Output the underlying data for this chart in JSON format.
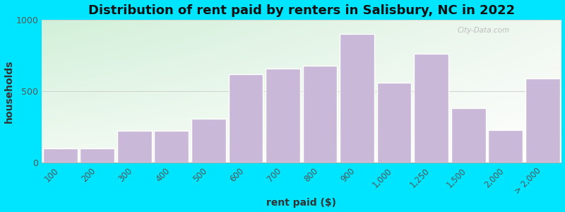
{
  "categories": [
    "100",
    "200",
    "300",
    "400",
    "500",
    "600",
    "700",
    "800",
    "900",
    "1,000",
    "1,250",
    "1,500",
    "2,000",
    "> 2,000"
  ],
  "values": [
    100,
    100,
    225,
    225,
    310,
    620,
    660,
    680,
    900,
    560,
    760,
    380,
    230,
    590
  ],
  "bar_color": "#c9b8d8",
  "bar_edge_color": "#ffffff",
  "title": "Distribution of rent paid by renters in Salisbury, NC in 2022",
  "xlabel": "rent paid ($)",
  "ylabel": "households",
  "ylim": [
    0,
    1000
  ],
  "yticks": [
    0,
    500,
    1000
  ],
  "bg_outer": "#00e5ff",
  "title_fontsize": 13,
  "label_fontsize": 10,
  "watermark_text": "City-Data.com",
  "grad_tl": [
    0.82,
    0.94,
    0.85
  ],
  "grad_tr": [
    0.94,
    0.97,
    0.94
  ],
  "grad_bl": [
    0.95,
    0.98,
    0.95
  ],
  "grad_br": [
    1.0,
    1.0,
    1.0
  ]
}
